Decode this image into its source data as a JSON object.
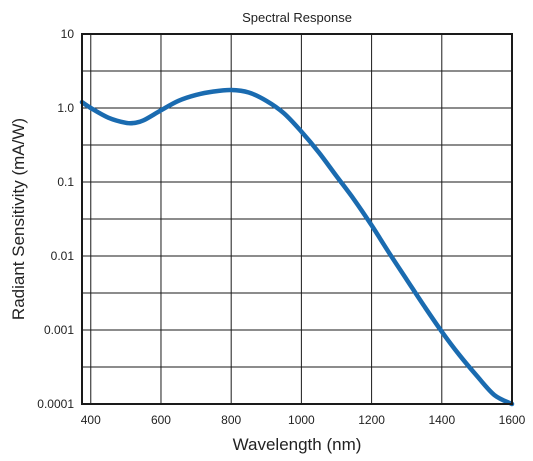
{
  "chart_data": {
    "type": "line",
    "title": "Spectral Response",
    "xlabel": "Wavelength (nm)",
    "ylabel": "Radiant Sensitivity (mA/W)",
    "xlim": [
      375,
      1600
    ],
    "ylim": [
      0.0001,
      10
    ],
    "yscale": "log",
    "grid": true,
    "x_ticks": [
      400,
      600,
      800,
      1000,
      1200,
      1400,
      1600
    ],
    "x_tick_labels": [
      "400",
      "600",
      "800",
      "1000",
      "1200",
      "1400",
      "1600"
    ],
    "y_ticks": [
      0.0001,
      0.001,
      0.01,
      0.1,
      1.0,
      10
    ],
    "y_tick_labels": [
      "0.0001",
      "0.001",
      "0.01",
      "0.1",
      "1.0",
      "10"
    ],
    "line_color": "#1a6bb0",
    "series": [
      {
        "x": [
          375,
          400,
          450,
          500,
          525,
          550,
          600,
          650,
          700,
          750,
          800,
          850,
          900,
          950,
          1000,
          1050,
          1100,
          1150,
          1200,
          1250,
          1300,
          1350,
          1400,
          1450,
          1500,
          1550,
          1600
        ],
        "y": [
          1.2,
          1.0,
          0.74,
          0.63,
          0.63,
          0.68,
          0.93,
          1.25,
          1.5,
          1.67,
          1.75,
          1.62,
          1.25,
          0.85,
          0.48,
          0.25,
          0.12,
          0.058,
          0.026,
          0.011,
          0.0048,
          0.0021,
          0.00095,
          0.00046,
          0.00024,
          0.000132,
          0.0001
        ]
      }
    ]
  }
}
